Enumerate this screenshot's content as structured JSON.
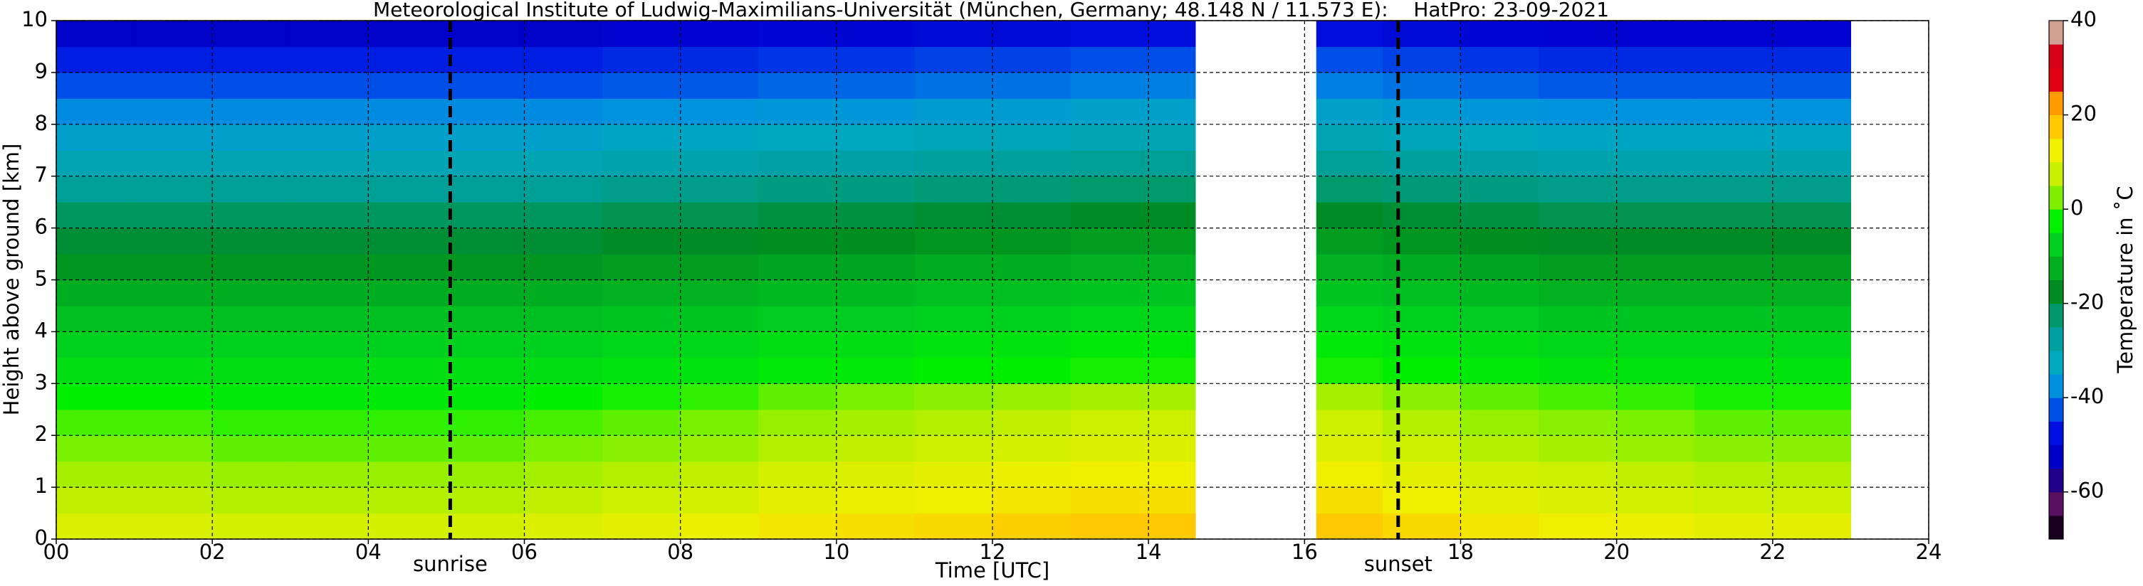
{
  "chart_data": {
    "type": "heatmap",
    "title": "Meteorological Institute of Ludwig-Maximilians-Universität (München, Germany; 48.148 N / 11.573 E):    HatPro: 23-09-2021",
    "xlabel": "Time [UTC]",
    "ylabel": "Height above ground [km]",
    "colorbar_label": "Temperature in ˚C",
    "xlim": [
      0,
      24
    ],
    "ylim": [
      0,
      10
    ],
    "zlim": [
      -70,
      40
    ],
    "xticks": [
      {
        "value": 0,
        "label": "00"
      },
      {
        "value": 2,
        "label": "02"
      },
      {
        "value": 4,
        "label": "04"
      },
      {
        "value": 6,
        "label": "06"
      },
      {
        "value": 8,
        "label": "08"
      },
      10,
      12,
      14,
      16,
      18,
      20,
      22,
      24
    ],
    "yticks": [
      0,
      1,
      2,
      3,
      4,
      5,
      6,
      7,
      8,
      9,
      10
    ],
    "zticks": [
      -60,
      -40,
      -20,
      0,
      20,
      40
    ],
    "grid": true,
    "events": [
      {
        "label": "sunrise",
        "x": 5.05
      },
      {
        "label": "sunset",
        "x": 17.2
      }
    ],
    "colormap": [
      "#1a0020",
      "#5a0f5f",
      "#20008a",
      "#0000c8",
      "#0010e0",
      "#0050e8",
      "#0090e0",
      "#00a8c0",
      "#00a0a0",
      "#009a6a",
      "#008a20",
      "#00b020",
      "#00d020",
      "#00f000",
      "#80f000",
      "#c8f000",
      "#f0f000",
      "#ffc800",
      "#ff9a00",
      "#e00010",
      "#d80018",
      "#d0a090"
    ],
    "x_bins": [
      0,
      1,
      2,
      3,
      4,
      5,
      6,
      7,
      8,
      9,
      10,
      11,
      12,
      13,
      14,
      14.6,
      16.15,
      17,
      18,
      19,
      20,
      21,
      22,
      23
    ],
    "y_bins": [
      0,
      0.5,
      1,
      1.5,
      2,
      2.5,
      3,
      3.5,
      4,
      4.5,
      5,
      5.5,
      6,
      6.5,
      7,
      7.5,
      8,
      8.5,
      9,
      9.5,
      10
    ],
    "z": [
      [
        11,
        8,
        6,
        3,
        1,
        -2,
        -5,
        -7,
        -10,
        -13,
        -16,
        -19,
        -22,
        -27,
        -31,
        -35,
        -39,
        -44,
        -48,
        -54
      ],
      [
        11,
        8,
        6,
        3,
        1,
        -2,
        -5,
        -7,
        -10,
        -13,
        -16,
        -19,
        -22,
        -27,
        -31,
        -35,
        -39,
        -44,
        -48,
        -54
      ],
      [
        10,
        7,
        5,
        2,
        0,
        -3,
        -5,
        -7,
        -10,
        -13,
        -16,
        -19,
        -22,
        -27,
        -31,
        -35,
        -39,
        -44,
        -48,
        -54
      ],
      [
        10,
        7,
        5,
        2,
        0,
        -3,
        -5,
        -7,
        -10,
        -13,
        -16,
        -19,
        -22,
        -27,
        -31,
        -35,
        -39,
        -44,
        -48,
        -54
      ],
      [
        10,
        7,
        5,
        2,
        0,
        -3,
        -5,
        -7,
        -10,
        -13,
        -16,
        -19,
        -22,
        -27,
        -31,
        -35,
        -39,
        -44,
        -48,
        -54
      ],
      [
        10,
        7,
        5,
        2,
        0,
        -3,
        -5,
        -7,
        -10,
        -13,
        -16,
        -19,
        -22,
        -27,
        -31,
        -35,
        -39,
        -44,
        -48,
        -54
      ],
      [
        11,
        8,
        6,
        3,
        1,
        -2,
        -5,
        -7,
        -10,
        -13,
        -16,
        -19,
        -22,
        -27,
        -31,
        -35,
        -39,
        -44,
        -48,
        -54
      ],
      [
        12,
        9,
        7,
        4,
        2,
        -1,
        -4,
        -6,
        -9,
        -12,
        -15,
        -18,
        -21,
        -26,
        -30,
        -34,
        -38,
        -43,
        -47,
        -53
      ],
      [
        13,
        10,
        8,
        5,
        3,
        0,
        -4,
        -6,
        -9,
        -12,
        -15,
        -18,
        -21,
        -26,
        -30,
        -34,
        -38,
        -43,
        -47,
        -53
      ],
      [
        15,
        12,
        10,
        7,
        5,
        2,
        -3,
        -5,
        -8,
        -11,
        -14,
        -17,
        -20,
        -25,
        -29,
        -33,
        -37,
        -42,
        -46,
        -52
      ],
      [
        16,
        13,
        11,
        8,
        6,
        3,
        -3,
        -5,
        -8,
        -11,
        -14,
        -17,
        -20,
        -25,
        -29,
        -33,
        -37,
        -42,
        -46,
        -52
      ],
      [
        17,
        14,
        12,
        9,
        7,
        4,
        -2,
        -4,
        -7,
        -10,
        -13,
        -16,
        -19,
        -24,
        -28,
        -32,
        -36,
        -41,
        -45,
        -51
      ],
      [
        18,
        15,
        13,
        10,
        8,
        5,
        -2,
        -4,
        -7,
        -10,
        -13,
        -16,
        -19,
        -24,
        -28,
        -32,
        -36,
        -41,
        -45,
        -51
      ],
      [
        19,
        16,
        14,
        11,
        9,
        6,
        -1,
        -3,
        -6,
        -9,
        -12,
        -15,
        -18,
        -23,
        -27,
        -31,
        -35,
        -40,
        -44,
        -50
      ],
      [
        19,
        16,
        14,
        11,
        9,
        6,
        -1,
        -3,
        -6,
        -9,
        -12,
        -15,
        -18,
        -23,
        -27,
        -31,
        -35,
        -40,
        -44,
        -50
      ],
      null,
      [
        19,
        16,
        14,
        11,
        9,
        6,
        -1,
        -3,
        -6,
        -9,
        -12,
        -15,
        -18,
        -23,
        -27,
        -31,
        -35,
        -40,
        -44,
        -50
      ],
      [
        17,
        14,
        12,
        9,
        7,
        4,
        -2,
        -4,
        -7,
        -10,
        -13,
        -16,
        -19,
        -24,
        -28,
        -32,
        -36,
        -41,
        -45,
        -51
      ],
      [
        15,
        12,
        10,
        7,
        5,
        2,
        -3,
        -5,
        -8,
        -11,
        -14,
        -17,
        -20,
        -25,
        -29,
        -33,
        -37,
        -42,
        -46,
        -52
      ],
      [
        14,
        11,
        9,
        6,
        4,
        1,
        -4,
        -6,
        -9,
        -12,
        -15,
        -18,
        -21,
        -26,
        -30,
        -34,
        -38,
        -43,
        -47,
        -53
      ],
      [
        13,
        10,
        8,
        5,
        3,
        0,
        -4,
        -6,
        -9,
        -12,
        -15,
        -18,
        -21,
        -26,
        -30,
        -34,
        -38,
        -43,
        -47,
        -53
      ],
      [
        12,
        9,
        7,
        4,
        2,
        -1,
        -4,
        -6,
        -9,
        -12,
        -15,
        -18,
        -21,
        -26,
        -30,
        -34,
        -38,
        -43,
        -47,
        -53
      ],
      [
        12,
        9,
        7,
        4,
        2,
        -1,
        -4,
        -6,
        -9,
        -12,
        -15,
        -18,
        -21,
        -26,
        -30,
        -34,
        -38,
        -43,
        -47,
        -53
      ]
    ]
  }
}
